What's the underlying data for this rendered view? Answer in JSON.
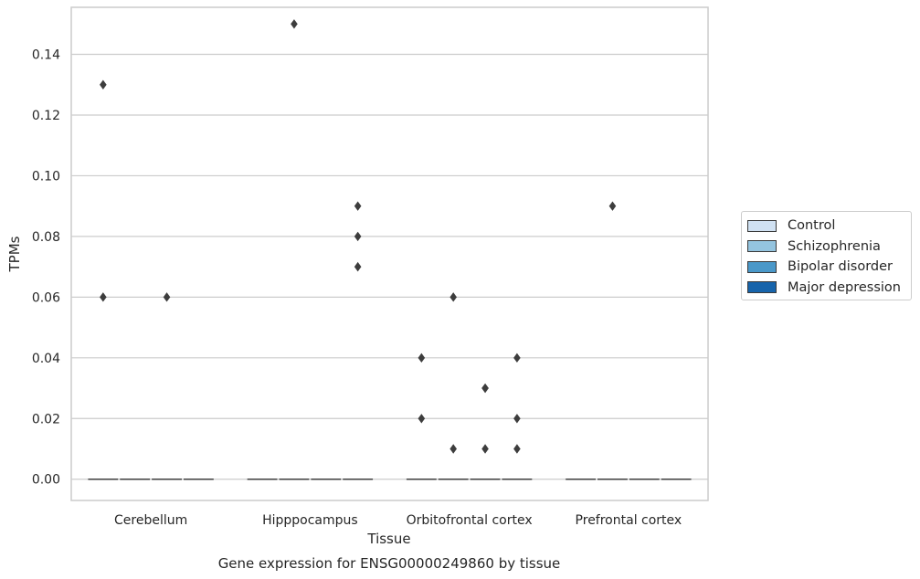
{
  "chart_data": {
    "type": "box",
    "title": "Gene expression for ENSG00000249860 by tissue",
    "xlabel": "Tissue",
    "ylabel": "TPMs",
    "ylim": [
      -0.007,
      0.1555
    ],
    "yticks": [
      0.0,
      0.02,
      0.04,
      0.06,
      0.08,
      0.1,
      0.12,
      0.14
    ],
    "ytick_labels": [
      "0.00",
      "0.02",
      "0.04",
      "0.06",
      "0.08",
      "0.10",
      "0.12",
      "0.14"
    ],
    "categories": [
      "Cerebellum",
      "Hipppocampus",
      "Orbitofrontal cortex",
      "Prefrontal cortex"
    ],
    "grid": "horizontal",
    "legend_position": "right",
    "series": [
      {
        "name": "Control",
        "color": "#d0e1f2",
        "median": [
          0,
          0,
          0,
          0
        ],
        "outliers": [
          [
            0.13,
            0.06
          ],
          [],
          [
            0.04,
            0.02
          ],
          []
        ]
      },
      {
        "name": "Schizophrenia",
        "color": "#94c4df",
        "median": [
          0,
          0,
          0,
          0
        ],
        "outliers": [
          [],
          [
            0.15
          ],
          [
            0.06,
            0.01
          ],
          [
            0.09
          ]
        ]
      },
      {
        "name": "Bipolar disorder",
        "color": "#4a98c9",
        "median": [
          0,
          0,
          0,
          0
        ],
        "outliers": [
          [
            0.06
          ],
          [],
          [
            0.03,
            0.03,
            0.01
          ],
          []
        ]
      },
      {
        "name": "Major depression",
        "color": "#1764ab",
        "median": [
          0,
          0,
          0,
          0
        ],
        "outliers": [
          [],
          [
            0.09,
            0.08,
            0.07
          ],
          [
            0.04,
            0.02,
            0.01
          ],
          []
        ]
      }
    ]
  }
}
